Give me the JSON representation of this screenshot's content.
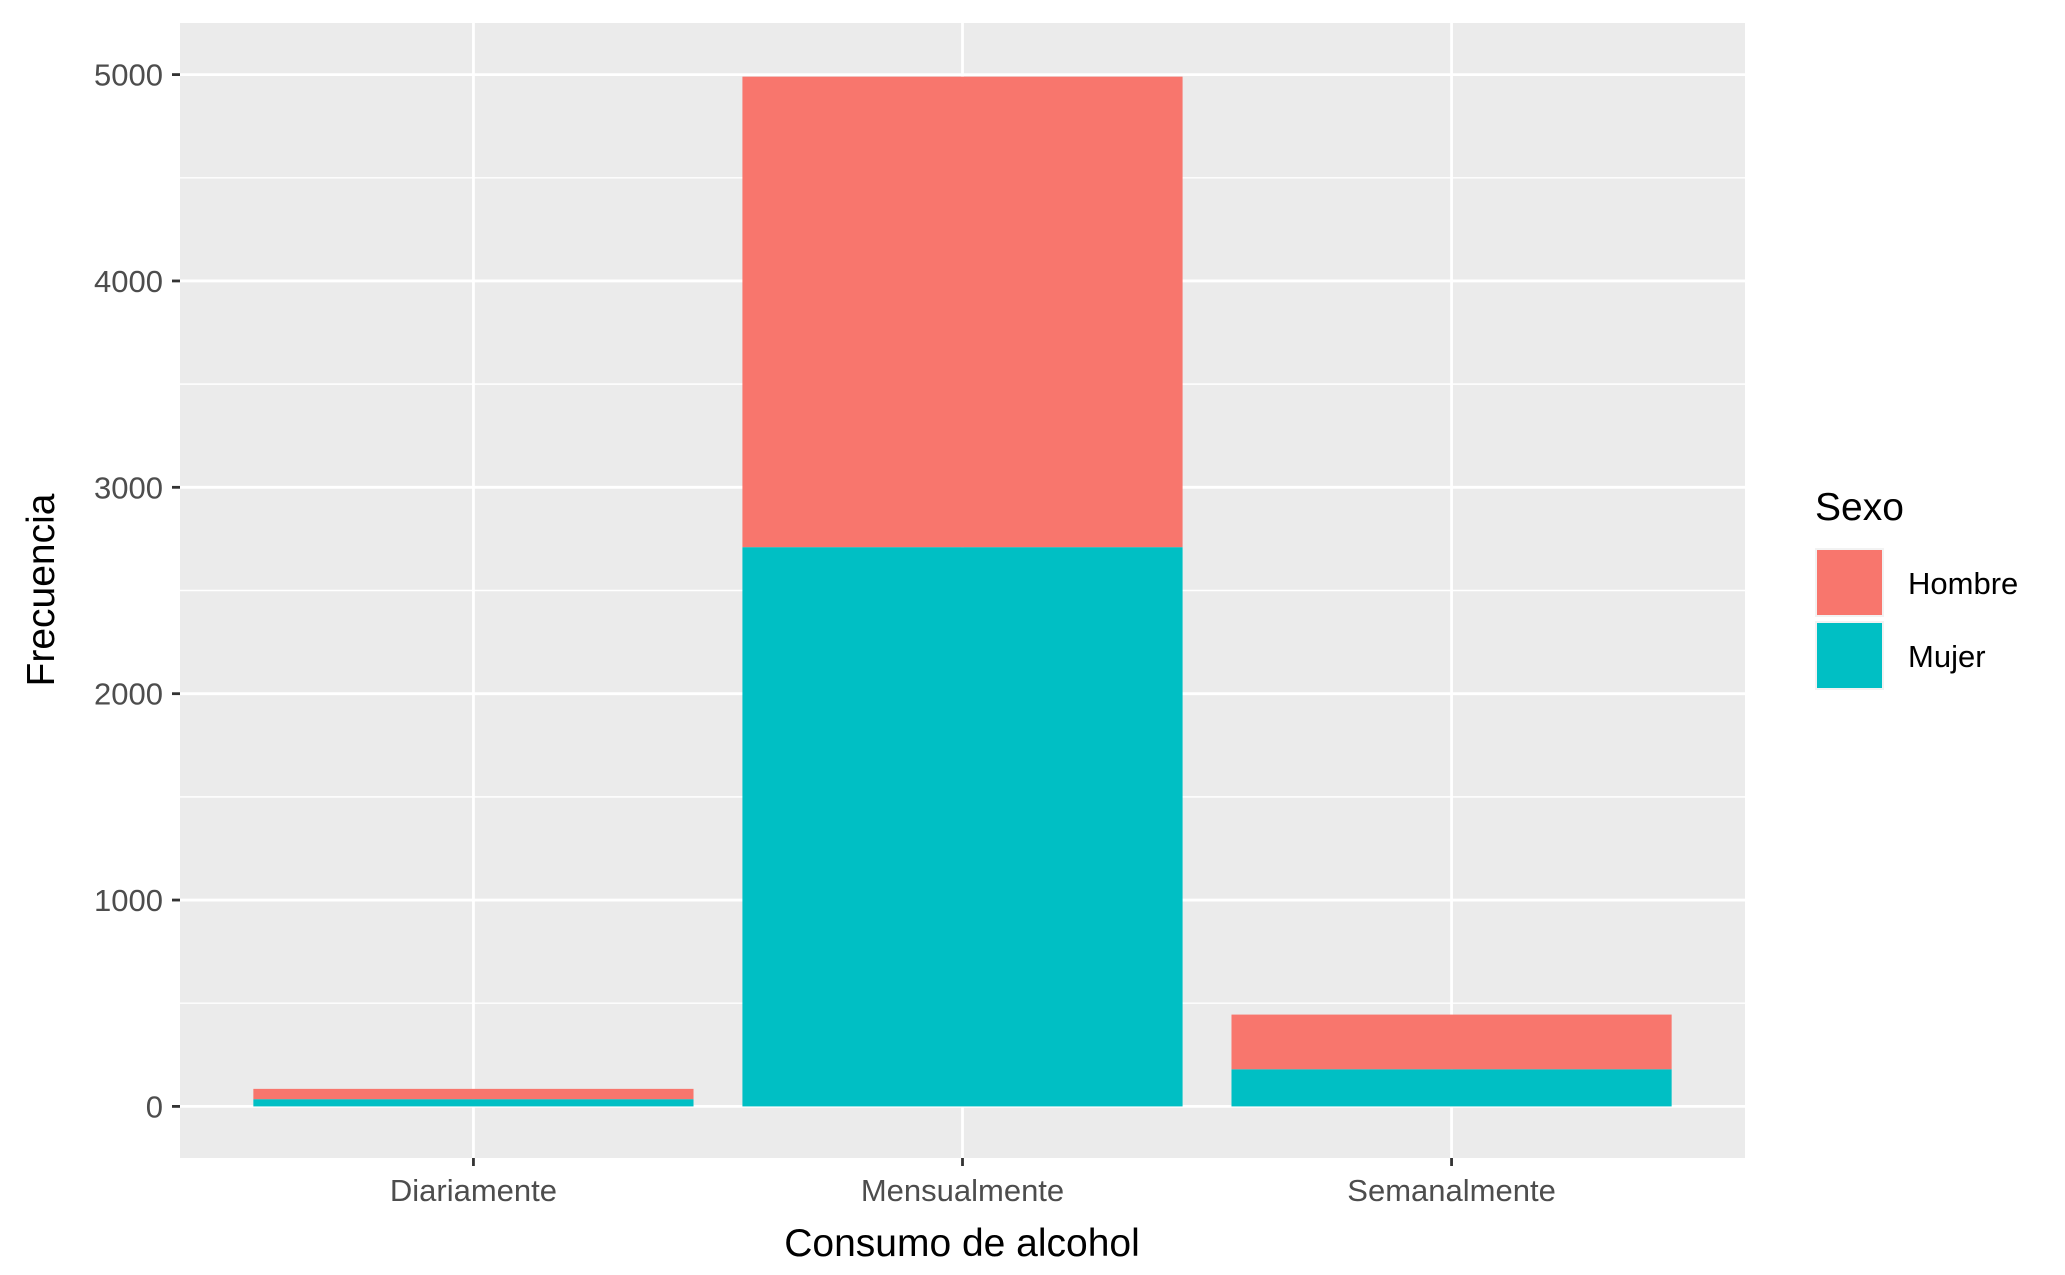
{
  "chart_data": {
    "type": "bar",
    "stacked": true,
    "title": "",
    "xlabel": "Consumo de alcohol",
    "ylabel": "Frecuencia",
    "categories": [
      "Diariamente",
      "Mensualmente",
      "Semanalmente"
    ],
    "series": [
      {
        "name": "Hombre",
        "color": "#F8766D",
        "values": [
          50,
          2280,
          265
        ]
      },
      {
        "name": "Mujer",
        "color": "#00BFC4",
        "values": [
          35,
          2710,
          180
        ]
      }
    ],
    "stack_order_bottom_to_top": [
      "Mujer",
      "Hombre"
    ],
    "ylim": [
      -250,
      5250
    ],
    "yticks": [
      0,
      1000,
      2000,
      3000,
      4000,
      5000
    ],
    "grid": true,
    "panel_background": "#EBEBEB",
    "legend": {
      "title": "Sexo",
      "position": "right"
    }
  }
}
